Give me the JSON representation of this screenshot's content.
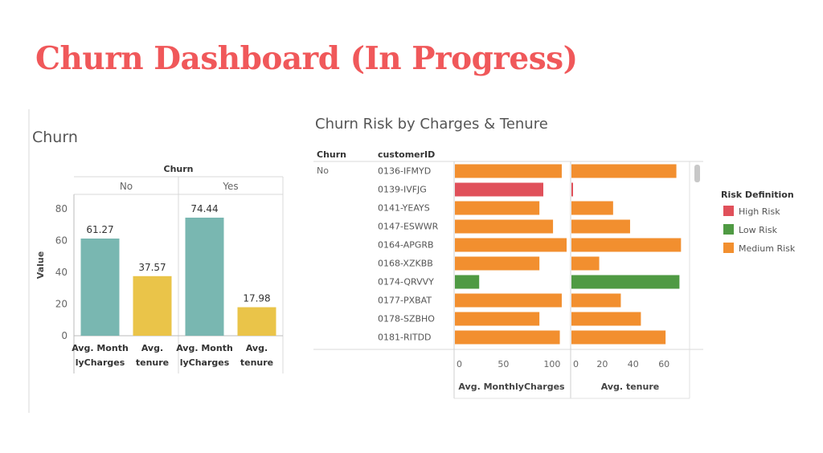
{
  "page_title": "Churn Dashboard (In Progress)",
  "colors": {
    "title": "#f0585a",
    "monthly_charges_bar": "#79b7b1",
    "tenure_bar": "#eac449",
    "high_risk": "#e0505a",
    "low_risk": "#4f9a43",
    "medium_risk": "#f28f2f"
  },
  "chart_data": [
    {
      "type": "bar",
      "title": "Churn",
      "column_header": "Churn",
      "ylabel": "Value",
      "ylim": [
        0,
        85
      ],
      "yticks": [
        "0",
        "20",
        "40",
        "60",
        "80"
      ],
      "grid": false,
      "groups": [
        {
          "name": "No",
          "bars": [
            {
              "label_lines": [
                "Avg. Month",
                "lyCharges"
              ],
              "value": 61.27,
              "value_label": "61.27",
              "color_key": "monthly_charges_bar"
            },
            {
              "label_lines": [
                "Avg.",
                "tenure"
              ],
              "value": 37.57,
              "value_label": "37.57",
              "color_key": "tenure_bar"
            }
          ]
        },
        {
          "name": "Yes",
          "bars": [
            {
              "label_lines": [
                "Avg. Month",
                "lyCharges"
              ],
              "value": 74.44,
              "value_label": "74.44",
              "color_key": "monthly_charges_bar"
            },
            {
              "label_lines": [
                "Avg.",
                "tenure"
              ],
              "value": 17.98,
              "value_label": "17.98",
              "color_key": "tenure_bar"
            }
          ]
        }
      ]
    },
    {
      "type": "bar",
      "orientation": "horizontal",
      "title": "Churn Risk by Charges & Tenure",
      "row_headers": [
        "Churn",
        "customerID"
      ],
      "churn_group": "No",
      "legend": {
        "title": "Risk Definition",
        "position": "right",
        "items": [
          {
            "label": "High Risk",
            "color_key": "high_risk"
          },
          {
            "label": "Low Risk",
            "color_key": "low_risk"
          },
          {
            "label": "Medium Risk",
            "color_key": "medium_risk"
          }
        ]
      },
      "panels": [
        {
          "xlabel": "Avg. MonthlyCharges",
          "xlim": [
            0,
            115
          ],
          "xticks": [
            0,
            50,
            100
          ]
        },
        {
          "xlabel": "Avg. tenure",
          "xlim": [
            0,
            75
          ],
          "xticks": [
            0,
            20,
            40,
            60
          ]
        }
      ],
      "rows": [
        {
          "id": "0136-IFMYD",
          "risk": "Medium Risk",
          "monthly_charges": 110,
          "tenure": 68
        },
        {
          "id": "0139-IVFJG",
          "risk": "High Risk",
          "monthly_charges": 91,
          "tenure": 1
        },
        {
          "id": "0141-YEAYS",
          "risk": "Medium Risk",
          "monthly_charges": 87,
          "tenure": 27
        },
        {
          "id": "0147-ESWWR",
          "risk": "Medium Risk",
          "monthly_charges": 101,
          "tenure": 38
        },
        {
          "id": "0164-APGRB",
          "risk": "Medium Risk",
          "monthly_charges": 115,
          "tenure": 71
        },
        {
          "id": "0168-XZKBB",
          "risk": "Medium Risk",
          "monthly_charges": 87,
          "tenure": 18
        },
        {
          "id": "0174-QRVVY",
          "risk": "Low Risk",
          "monthly_charges": 25,
          "tenure": 70
        },
        {
          "id": "0177-PXBAT",
          "risk": "Medium Risk",
          "monthly_charges": 110,
          "tenure": 32
        },
        {
          "id": "0178-SZBHO",
          "risk": "Medium Risk",
          "monthly_charges": 87,
          "tenure": 45
        },
        {
          "id": "0181-RITDD",
          "risk": "Medium Risk",
          "monthly_charges": 108,
          "tenure": 61
        }
      ]
    }
  ]
}
